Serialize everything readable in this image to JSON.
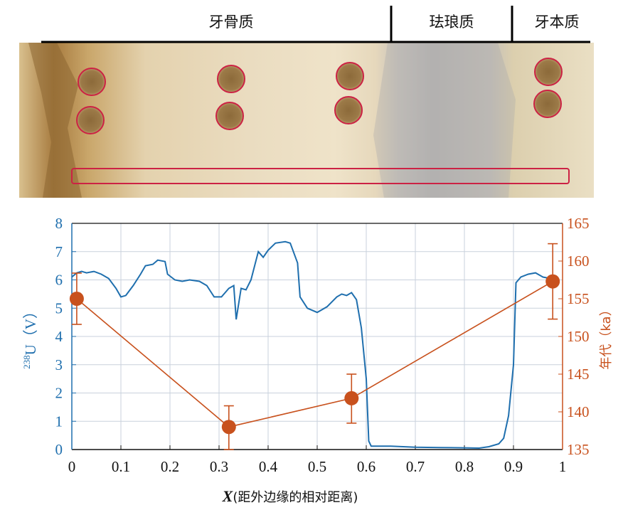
{
  "photo": {
    "zones": [
      {
        "label": "牙骨质"
      },
      {
        "label": "珐琅质"
      },
      {
        "label": "牙本质"
      }
    ]
  },
  "colors": {
    "u_series": "#1f6fae",
    "age_series": "#c8511d",
    "spot_ring": "#cc2244",
    "grid": "#c9d1dc"
  },
  "chart_data": {
    "type": "line",
    "x_axis": {
      "label_symbol": "X",
      "label_text": "(距外边缘的相对距离)",
      "range": [
        0,
        1
      ],
      "ticks": [
        "0",
        "0.1",
        "0.2",
        "0.3",
        "0.4",
        "0.5",
        "0.6",
        "0.7",
        "0.8",
        "0.9",
        "1"
      ]
    },
    "y_left": {
      "label_superscript": "238",
      "label_text": "U（V）",
      "range": [
        0,
        8
      ],
      "ticks": [
        "0",
        "1",
        "2",
        "3",
        "4",
        "5",
        "6",
        "7",
        "8"
      ]
    },
    "y_right": {
      "label": "年代（ka）",
      "range": [
        135,
        165
      ],
      "ticks": [
        "135",
        "140",
        "145",
        "150",
        "155",
        "160",
        "165"
      ]
    },
    "grid": true,
    "series": [
      {
        "axis": "left",
        "points": [
          [
            0.0,
            6.1
          ],
          [
            0.01,
            6.25
          ],
          [
            0.02,
            6.3
          ],
          [
            0.03,
            6.25
          ],
          [
            0.045,
            6.3
          ],
          [
            0.06,
            6.2
          ],
          [
            0.075,
            6.05
          ],
          [
            0.09,
            5.7
          ],
          [
            0.1,
            5.4
          ],
          [
            0.11,
            5.45
          ],
          [
            0.125,
            5.8
          ],
          [
            0.14,
            6.2
          ],
          [
            0.15,
            6.5
          ],
          [
            0.165,
            6.55
          ],
          [
            0.175,
            6.7
          ],
          [
            0.19,
            6.65
          ],
          [
            0.195,
            6.2
          ],
          [
            0.21,
            6.0
          ],
          [
            0.225,
            5.95
          ],
          [
            0.24,
            6.0
          ],
          [
            0.26,
            5.95
          ],
          [
            0.275,
            5.8
          ],
          [
            0.29,
            5.4
          ],
          [
            0.305,
            5.4
          ],
          [
            0.32,
            5.7
          ],
          [
            0.33,
            5.8
          ],
          [
            0.335,
            4.6
          ],
          [
            0.345,
            5.7
          ],
          [
            0.355,
            5.65
          ],
          [
            0.365,
            6.0
          ],
          [
            0.38,
            7.0
          ],
          [
            0.39,
            6.8
          ],
          [
            0.4,
            7.05
          ],
          [
            0.415,
            7.3
          ],
          [
            0.435,
            7.35
          ],
          [
            0.445,
            7.3
          ],
          [
            0.46,
            6.6
          ],
          [
            0.465,
            5.4
          ],
          [
            0.48,
            5.0
          ],
          [
            0.5,
            4.85
          ],
          [
            0.52,
            5.05
          ],
          [
            0.54,
            5.4
          ],
          [
            0.55,
            5.5
          ],
          [
            0.56,
            5.45
          ],
          [
            0.57,
            5.55
          ],
          [
            0.58,
            5.3
          ],
          [
            0.59,
            4.3
          ],
          [
            0.6,
            2.5
          ],
          [
            0.605,
            0.3
          ],
          [
            0.61,
            0.12
          ],
          [
            0.65,
            0.12
          ],
          [
            0.7,
            0.08
          ],
          [
            0.75,
            0.07
          ],
          [
            0.8,
            0.06
          ],
          [
            0.83,
            0.05
          ],
          [
            0.85,
            0.1
          ],
          [
            0.87,
            0.2
          ],
          [
            0.88,
            0.4
          ],
          [
            0.89,
            1.2
          ],
          [
            0.9,
            3.0
          ],
          [
            0.905,
            5.9
          ],
          [
            0.915,
            6.1
          ],
          [
            0.93,
            6.2
          ],
          [
            0.945,
            6.25
          ],
          [
            0.96,
            6.1
          ],
          [
            0.975,
            6.05
          ]
        ]
      },
      {
        "axis": "right",
        "points": [
          {
            "x": 0.01,
            "y": 155.0,
            "err_low": 151.6,
            "err_high": 158.4
          },
          {
            "x": 0.32,
            "y": 138.0,
            "err_low": 135.0,
            "err_high": 140.8
          },
          {
            "x": 0.57,
            "y": 141.8,
            "err_low": 138.5,
            "err_high": 145.0
          },
          {
            "x": 0.98,
            "y": 157.3,
            "err_low": 152.3,
            "err_high": 162.3
          }
        ]
      }
    ]
  }
}
